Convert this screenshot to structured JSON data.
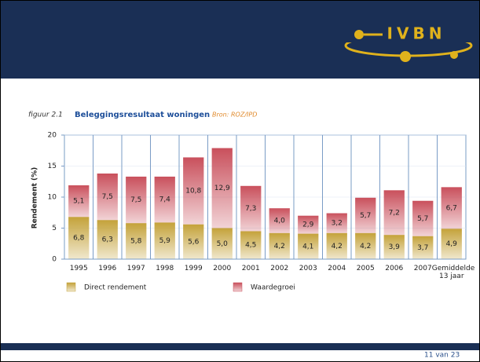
{
  "logo": "IVBN",
  "chart_data": {
    "type": "stacked_bar",
    "figure_label": "figuur 2.1",
    "title": "Beleggingsresultaat woningen",
    "source": "Bron: ROZ/IPD",
    "y_label": "Rendement (%)",
    "categories": [
      "1995",
      "1996",
      "1997",
      "1998",
      "1999",
      "2000",
      "2001",
      "2002",
      "2003",
      "2004",
      "2005",
      "2006",
      "2007",
      "Gemiddelde 13 jaar"
    ],
    "series": [
      {
        "name": "Direct rendement",
        "color": "#c4a23a",
        "values": [
          6.8,
          6.3,
          5.8,
          5.9,
          5.6,
          5.0,
          4.5,
          4.2,
          4.1,
          4.2,
          4.2,
          3.9,
          3.7,
          4.9
        ],
        "value_labels": [
          "6,8",
          "6,3",
          "5,8",
          "5,9",
          "5,6",
          "5,0",
          "4,5",
          "4,2",
          "4,1",
          "4,2",
          "4,2",
          "3,9",
          "3,7",
          "4,9"
        ]
      },
      {
        "name": "Waardegroei",
        "color": "#c9505c",
        "values": [
          5.1,
          7.5,
          7.5,
          7.4,
          10.8,
          12.9,
          7.3,
          4.0,
          2.9,
          3.2,
          5.7,
          7.2,
          5.7,
          6.7
        ],
        "value_labels": [
          "5,1",
          "7,5",
          "7,5",
          "7,4",
          "10,8",
          "12,9",
          "7,3",
          "4,0",
          "2,9",
          "3,2",
          "5,7",
          "7,2",
          "5,7",
          "6,7"
        ]
      }
    ],
    "ylim": [
      0,
      20
    ],
    "yticks": [
      0,
      5,
      10,
      15,
      20
    ],
    "grid": true
  },
  "footer": {
    "page": "11 van 23"
  }
}
